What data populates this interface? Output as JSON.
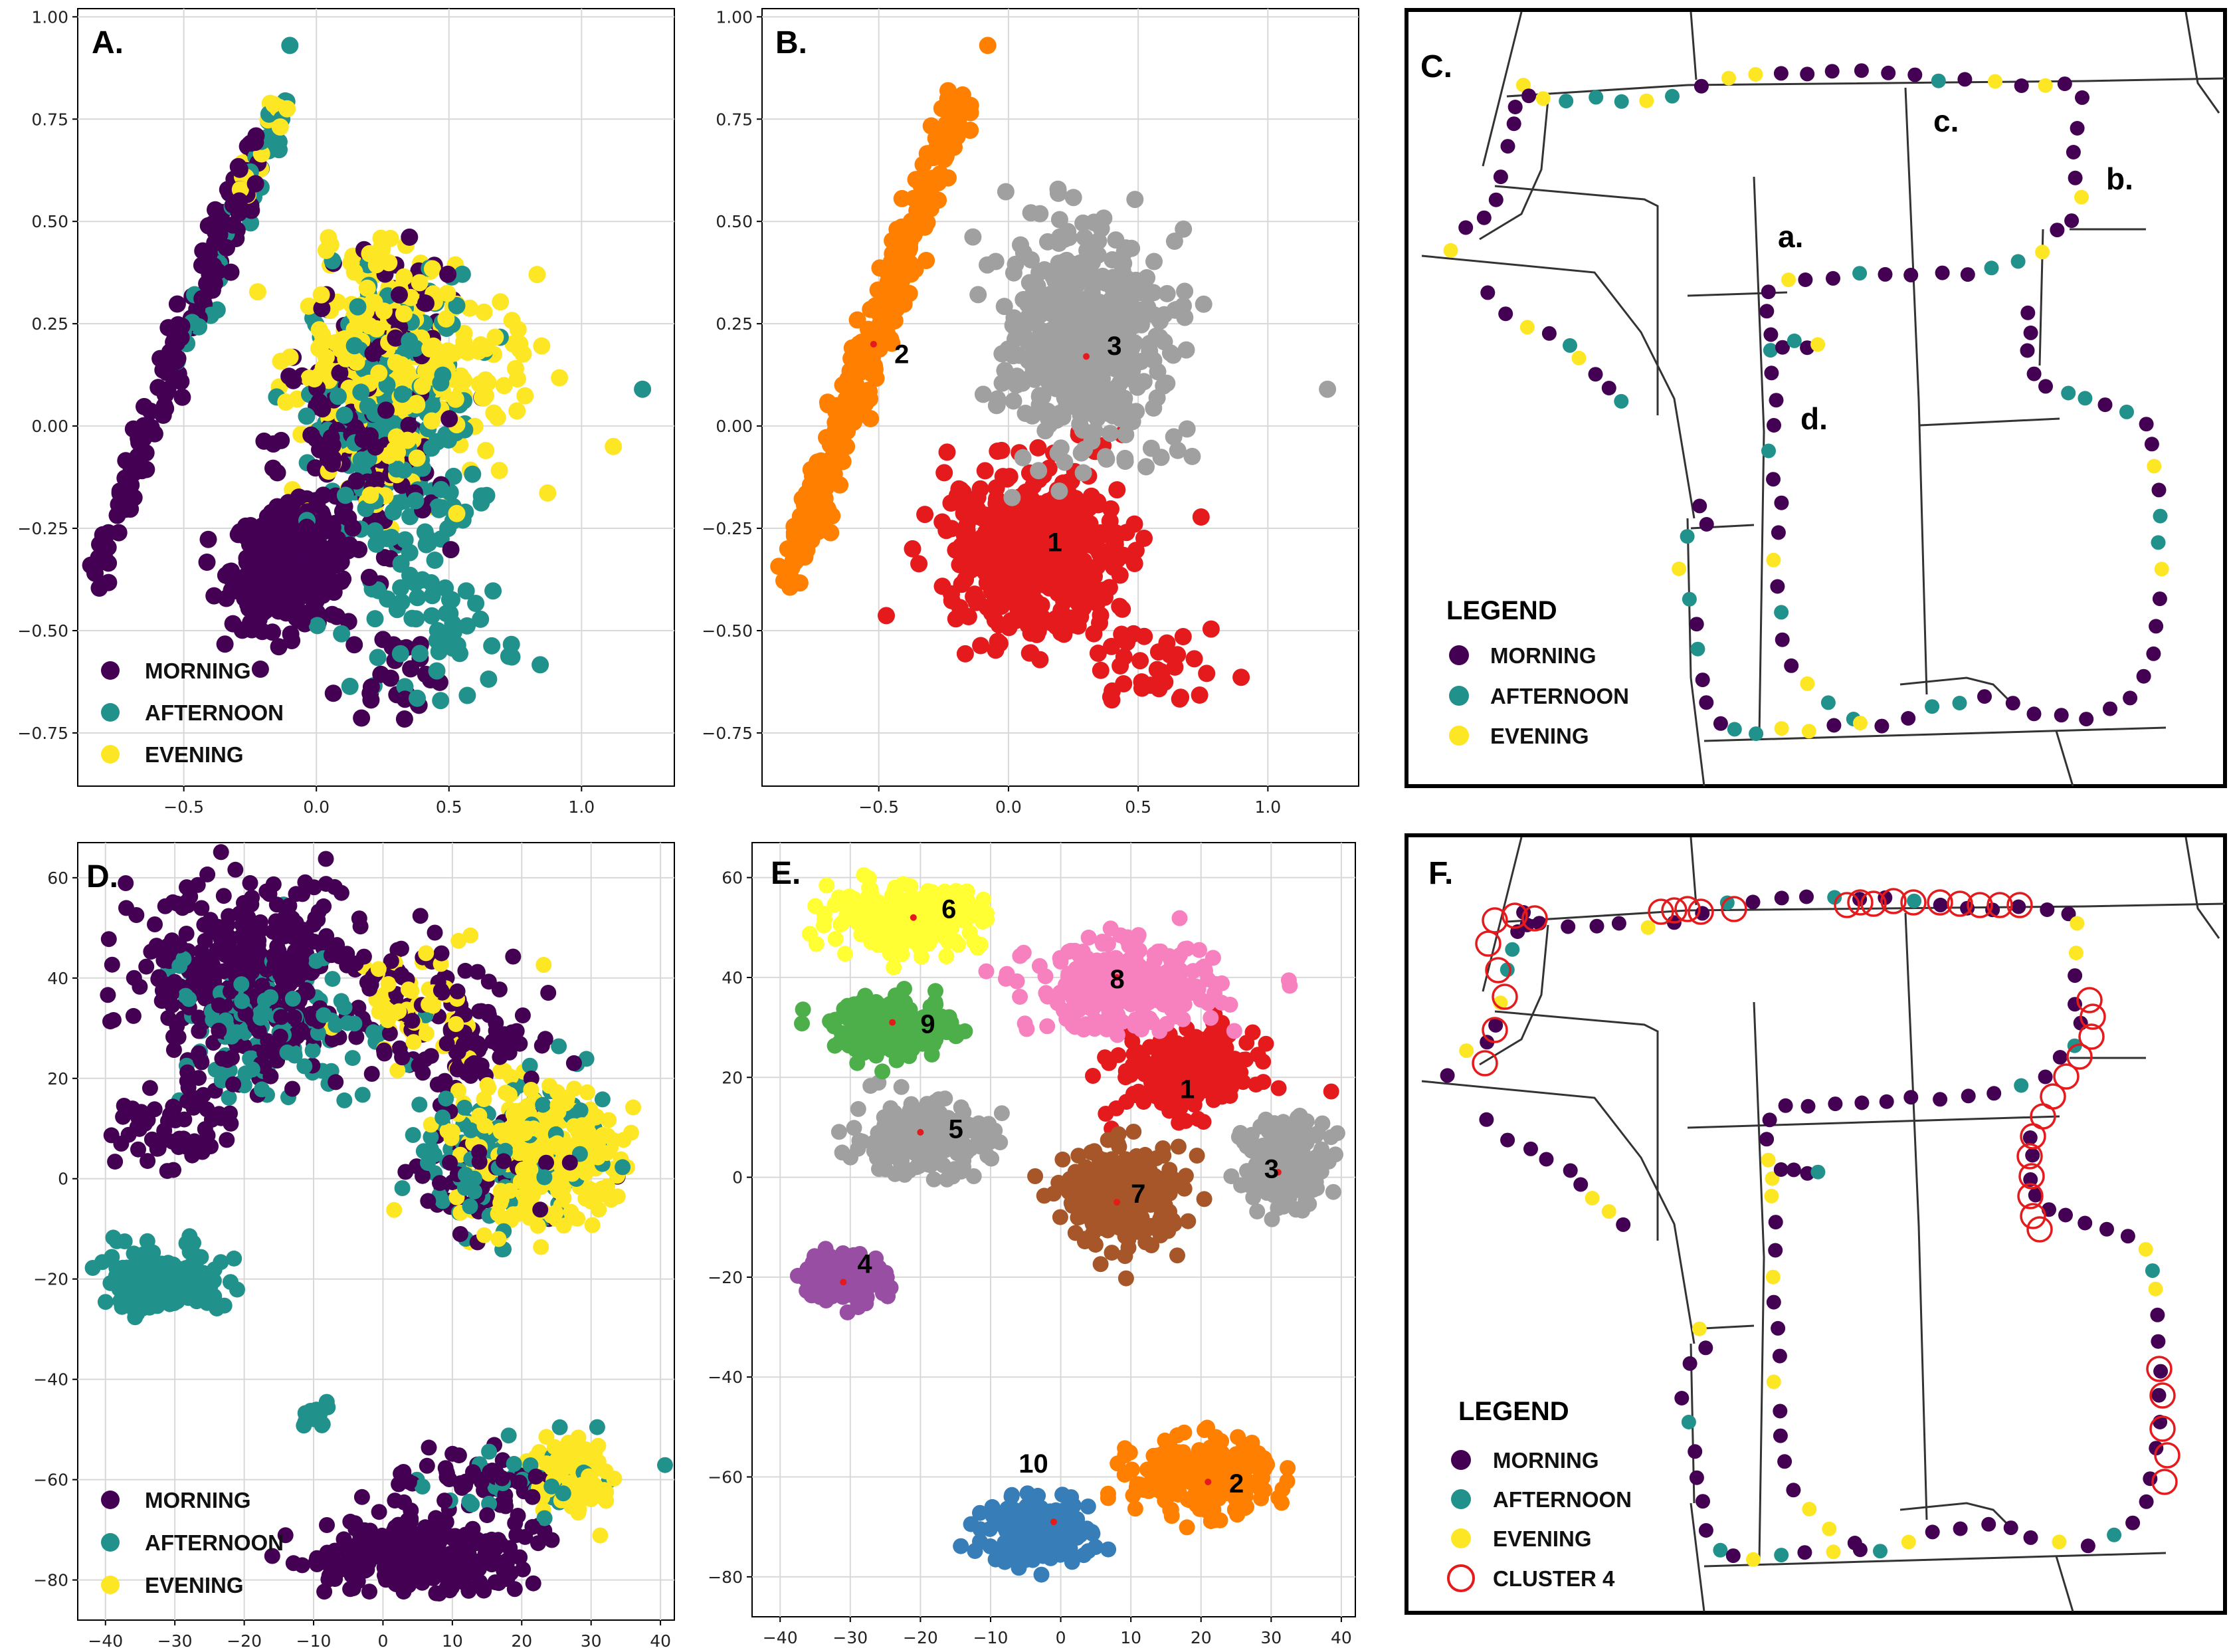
{
  "colors": {
    "morning": "#440154",
    "afternoon": "#21918c",
    "evening": "#fde725",
    "cluster4_ring": "#e41a1c",
    "pca_c1": "#e41a1c",
    "pca_c2": "#ff7f00",
    "pca_c3": "#a0a0a0",
    "tsne": [
      "#e41a1c",
      "#ff7f00",
      "#a0a0a0",
      "#984ea3",
      "#a0a0a0",
      "#ffff33",
      "#a65628",
      "#f781bf",
      "#4daf4a",
      "#377eb8"
    ]
  },
  "chart_data": [
    {
      "panel": "A.",
      "type": "scatter",
      "xlim": [
        -0.9,
        1.35
      ],
      "ylim": [
        -0.88,
        1.02
      ],
      "xticks": [
        -0.5,
        0.0,
        0.5,
        1.0
      ],
      "yticks": [
        -0.75,
        -0.5,
        -0.25,
        0.0,
        0.25,
        0.5,
        0.75,
        1.0
      ],
      "xtick_labels": [
        "−0.5",
        "0.0",
        "0.5",
        "1.0"
      ],
      "ytick_labels": [
        "−0.75",
        "−0.50",
        "−0.25",
        "0.00",
        "0.25",
        "0.50",
        "0.75",
        "1.00"
      ],
      "grid": true,
      "legend_position": "lower-left",
      "legend": [
        "MORNING",
        "AFTERNOON",
        "EVENING"
      ],
      "series": [
        {
          "name": "MORNING",
          "clusters": [
            {
              "shape": "line",
              "from": [
                -0.85,
                -0.37
              ],
              "to": [
                -0.22,
                0.68
              ],
              "width": 0.05,
              "n": 160
            },
            {
              "shape": "blob",
              "center": [
                -0.1,
                -0.35
              ],
              "spread": [
                0.18,
                0.12
              ],
              "n": 320
            },
            {
              "shape": "blob",
              "center": [
                0.15,
                -0.05
              ],
              "spread": [
                0.25,
                0.25
              ],
              "n": 160
            },
            {
              "shape": "blob",
              "center": [
                0.3,
                0.3
              ],
              "spread": [
                0.15,
                0.15
              ],
              "n": 40
            },
            {
              "shape": "blob",
              "center": [
                0.3,
                -0.6
              ],
              "spread": [
                0.15,
                0.1
              ],
              "n": 25
            }
          ]
        },
        {
          "name": "AFTERNOON",
          "clusters": [
            {
              "shape": "line",
              "from": [
                -0.55,
                0.1
              ],
              "to": [
                -0.12,
                0.8
              ],
              "width": 0.04,
              "n": 40
            },
            {
              "shape": "blob",
              "center": [
                0.3,
                0.0
              ],
              "spread": [
                0.25,
                0.3
              ],
              "n": 260
            },
            {
              "shape": "blob",
              "center": [
                0.5,
                -0.5
              ],
              "spread": [
                0.22,
                0.13
              ],
              "n": 50
            },
            {
              "shape": "point",
              "at": [
                -0.1,
                0.93
              ]
            },
            {
              "shape": "point",
              "at": [
                1.23,
                0.09
              ]
            }
          ]
        },
        {
          "name": "EVENING",
          "clusters": [
            {
              "shape": "line",
              "from": [
                -0.3,
                0.55
              ],
              "to": [
                -0.12,
                0.82
              ],
              "width": 0.03,
              "n": 25
            },
            {
              "shape": "blob",
              "center": [
                0.25,
                0.15
              ],
              "spread": [
                0.25,
                0.25
              ],
              "n": 300
            },
            {
              "shape": "blob",
              "center": [
                0.65,
                0.1
              ],
              "spread": [
                0.2,
                0.2
              ],
              "n": 40
            },
            {
              "shape": "point",
              "at": [
                1.12,
                -0.05
              ]
            }
          ]
        }
      ]
    },
    {
      "panel": "B.",
      "type": "scatter",
      "xlim": [
        -0.95,
        1.35
      ],
      "ylim": [
        -0.88,
        1.02
      ],
      "xticks": [
        -0.5,
        0.0,
        0.5,
        1.0
      ],
      "yticks": [
        -0.75,
        -0.5,
        -0.25,
        0.0,
        0.25,
        0.5,
        0.75,
        1.0
      ],
      "xtick_labels": [
        "−0.5",
        "0.0",
        "0.5",
        "1.0"
      ],
      "ytick_labels": [
        "−0.75",
        "−0.50",
        "−0.25",
        "0.00",
        "0.25",
        "0.50",
        "0.75",
        "1.00"
      ],
      "grid": true,
      "series": [
        {
          "name": "1",
          "label_at": [
            0.15,
            -0.28
          ],
          "centroid": [
            0.1,
            -0.3
          ],
          "clusters": [
            {
              "shape": "blob",
              "center": [
                0.1,
                -0.3
              ],
              "spread": [
                0.28,
                0.16
              ],
              "n": 520
            },
            {
              "shape": "blob",
              "center": [
                0.5,
                -0.58
              ],
              "spread": [
                0.2,
                0.1
              ],
              "n": 40
            }
          ]
        },
        {
          "name": "2",
          "label_at": [
            -0.44,
            0.18
          ],
          "centroid": [
            -0.52,
            0.2
          ],
          "clusters": [
            {
              "shape": "line",
              "from": [
                -0.85,
                -0.37
              ],
              "to": [
                -0.18,
                0.8
              ],
              "width": 0.05,
              "n": 330
            },
            {
              "shape": "point",
              "at": [
                -0.08,
                0.93
              ]
            }
          ]
        },
        {
          "name": "3",
          "label_at": [
            0.38,
            0.2
          ],
          "centroid": [
            0.3,
            0.17
          ],
          "clusters": [
            {
              "shape": "blob",
              "center": [
                0.3,
                0.2
              ],
              "spread": [
                0.25,
                0.22
              ],
              "n": 480
            },
            {
              "shape": "point",
              "at": [
                1.23,
                0.09
              ]
            }
          ]
        }
      ]
    },
    {
      "panel": "D.",
      "type": "scatter",
      "xlim": [
        -44,
        42
      ],
      "ylim": [
        -88,
        67
      ],
      "xticks": [
        -40,
        -30,
        -20,
        -10,
        0,
        10,
        20,
        30,
        40
      ],
      "yticks": [
        -80,
        -60,
        -40,
        -20,
        0,
        20,
        40,
        60
      ],
      "grid": true,
      "legend_position": "lower-left",
      "legend": [
        "MORNING",
        "AFTERNOON",
        "EVENING"
      ],
      "series": [
        {
          "name": "MORNING",
          "clusters": [
            {
              "shape": "blob",
              "center": [
                -18,
                40
              ],
              "spread": [
                14,
                16
              ],
              "n": 380
            },
            {
              "shape": "blob",
              "center": [
                -30,
                10
              ],
              "spread": [
                7,
                7
              ],
              "n": 60
            },
            {
              "shape": "blob",
              "center": [
                10,
                30
              ],
              "spread": [
                10,
                14
              ],
              "n": 120
            },
            {
              "shape": "blob",
              "center": [
                5,
                -75
              ],
              "spread": [
                12,
                6
              ],
              "n": 280
            },
            {
              "shape": "blob",
              "center": [
                15,
                -60
              ],
              "spread": [
                10,
                5
              ],
              "n": 60
            },
            {
              "shape": "blob",
              "center": [
                15,
                0
              ],
              "spread": [
                10,
                10
              ],
              "n": 60
            }
          ]
        },
        {
          "name": "AFTERNOON",
          "clusters": [
            {
              "shape": "blob",
              "center": [
                -32,
                -20
              ],
              "spread": [
                7,
                5
              ],
              "n": 170
            },
            {
              "shape": "blob",
              "center": [
                -10,
                -47
              ],
              "spread": [
                2,
                2
              ],
              "n": 22
            },
            {
              "shape": "blob",
              "center": [
                -15,
                30
              ],
              "spread": [
                14,
                16
              ],
              "n": 120
            },
            {
              "shape": "blob",
              "center": [
                18,
                5
              ],
              "spread": [
                12,
                12
              ],
              "n": 120
            },
            {
              "shape": "blob",
              "center": [
                20,
                -60
              ],
              "spread": [
                9,
                6
              ],
              "n": 40
            }
          ]
        },
        {
          "name": "EVENING",
          "clusters": [
            {
              "shape": "blob",
              "center": [
                22,
                5
              ],
              "spread": [
                10,
                11
              ],
              "n": 340
            },
            {
              "shape": "blob",
              "center": [
                28,
                -60
              ],
              "spread": [
                5,
                6
              ],
              "n": 90
            },
            {
              "shape": "blob",
              "center": [
                5,
                35
              ],
              "spread": [
                8,
                10
              ],
              "n": 60
            }
          ]
        }
      ]
    },
    {
      "panel": "E.",
      "type": "scatter",
      "xlim": [
        -44,
        42
      ],
      "ylim": [
        -88,
        67
      ],
      "xticks": [
        -40,
        -30,
        -20,
        -10,
        0,
        10,
        20,
        30,
        40
      ],
      "yticks": [
        -80,
        -60,
        -40,
        -20,
        0,
        20,
        40,
        60
      ],
      "grid": true,
      "series": [
        {
          "name": "1",
          "centroid": [
            16,
            22
          ],
          "label_at": [
            17,
            18
          ],
          "clusters": [
            {
              "shape": "blob",
              "center": [
                18,
                21
              ],
              "spread": [
                8,
                7
              ],
              "n": 240
            }
          ]
        },
        {
          "name": "2",
          "centroid": [
            21,
            -61
          ],
          "label_at": [
            24,
            -61
          ],
          "clusters": [
            {
              "shape": "blob",
              "center": [
                20,
                -60
              ],
              "spread": [
                8,
                6
              ],
              "n": 260
            }
          ]
        },
        {
          "name": "3",
          "centroid": [
            31,
            1
          ],
          "label_at": [
            29,
            2
          ],
          "clusters": [
            {
              "shape": "blob",
              "center": [
                32,
                3
              ],
              "spread": [
                5,
                7
              ],
              "n": 200
            }
          ]
        },
        {
          "name": "4",
          "centroid": [
            -31,
            -21
          ],
          "label_at": [
            -29,
            -17
          ],
          "clusters": [
            {
              "shape": "blob",
              "center": [
                -31,
                -20
              ],
              "spread": [
                5,
                4
              ],
              "n": 150
            }
          ]
        },
        {
          "name": "5",
          "centroid": [
            -20,
            9
          ],
          "label_at": [
            -16,
            10
          ],
          "clusters": [
            {
              "shape": "blob",
              "center": [
                -20,
                8
              ],
              "spread": [
                8,
                6
              ],
              "n": 240
            }
          ]
        },
        {
          "name": "6",
          "centroid": [
            -21,
            52
          ],
          "label_at": [
            -17,
            54
          ],
          "clusters": [
            {
              "shape": "blob",
              "center": [
                -22,
                52
              ],
              "spread": [
                9,
                5
              ],
              "n": 260
            }
          ]
        },
        {
          "name": "7",
          "centroid": [
            8,
            -5
          ],
          "label_at": [
            10,
            -3
          ],
          "clusters": [
            {
              "shape": "blob",
              "center": [
                9,
                -4
              ],
              "spread": [
                7,
                8
              ],
              "n": 270
            }
          ]
        },
        {
          "name": "8",
          "centroid": [
            8,
            40
          ],
          "label_at": [
            7,
            40
          ],
          "clusters": [
            {
              "shape": "blob",
              "center": [
                9,
                38
              ],
              "spread": [
                11,
                7
              ],
              "n": 300
            }
          ]
        },
        {
          "name": "9",
          "centroid": [
            -24,
            31
          ],
          "label_at": [
            -20,
            31
          ],
          "clusters": [
            {
              "shape": "blob",
              "center": [
                -24,
                30
              ],
              "spread": [
                7,
                5
              ],
              "n": 200
            }
          ]
        },
        {
          "name": "10",
          "centroid": [
            -1,
            -69
          ],
          "label_at": [
            -6,
            -57
          ],
          "clusters": [
            {
              "shape": "blob",
              "center": [
                -3,
                -71
              ],
              "spread": [
                6,
                5
              ],
              "n": 230
            }
          ]
        }
      ]
    }
  ],
  "panels": {
    "A": "A.",
    "B": "B.",
    "C": "C.",
    "D": "D.",
    "E": "E.",
    "F": "F."
  },
  "map_c": {
    "legend_title": "LEGEND",
    "legend": [
      "MORNING",
      "AFTERNOON",
      "EVENING"
    ],
    "annotations": {
      "a": "a.",
      "b": "b.",
      "c": "c.",
      "d": "d."
    }
  },
  "map_f": {
    "legend_title": "LEGEND",
    "legend": [
      "MORNING",
      "AFTERNOON",
      "EVENING",
      "CLUSTER 4"
    ]
  }
}
